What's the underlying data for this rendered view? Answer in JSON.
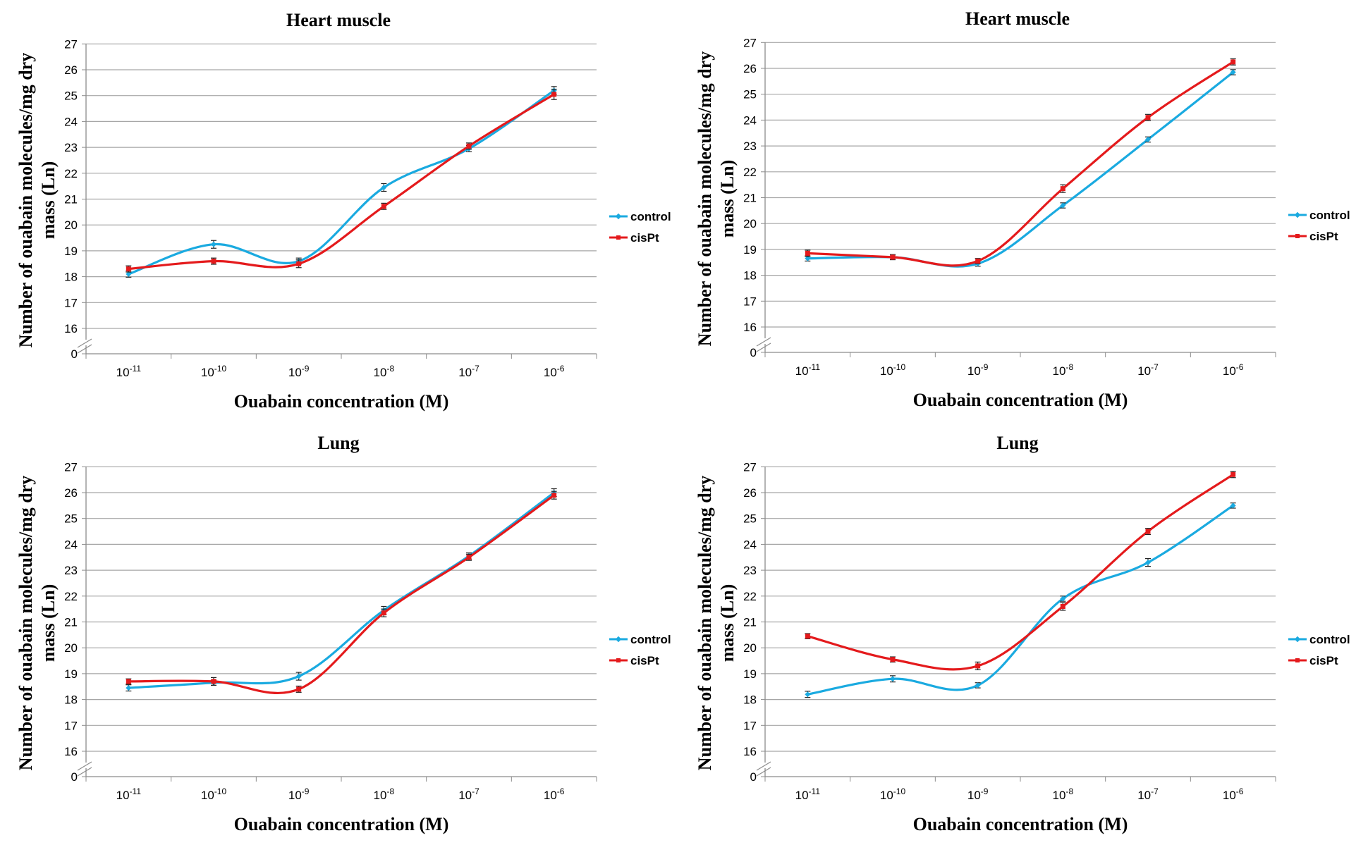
{
  "colors": {
    "control": "#1aaae0",
    "cisPt": "#e41a1c",
    "grid": "#a6a6a6",
    "axis": "#8c8c8c"
  },
  "chart_data": [
    {
      "type": "line",
      "title": "Heart muscle",
      "xlabel": "Ouabain concentration (M)",
      "ylabel_lines": [
        "Number of ouabain molecules/mg dry",
        "mass  (Ln)"
      ],
      "categories": [
        {
          "base": "10",
          "exp": "-11"
        },
        {
          "base": "10",
          "exp": "-10"
        },
        {
          "base": "10",
          "exp": "-9"
        },
        {
          "base": "10",
          "exp": "-8"
        },
        {
          "base": "10",
          "exp": "-7"
        },
        {
          "base": "10",
          "exp": "-6"
        }
      ],
      "y_ticks": [
        "0",
        "16",
        "17",
        "18",
        "19",
        "20",
        "21",
        "22",
        "23",
        "24",
        "25",
        "26",
        "27"
      ],
      "ylim": [
        15,
        27
      ],
      "y_axis_break": true,
      "legend": {
        "position": "right",
        "entries": [
          "control",
          "cisPt"
        ]
      },
      "series": [
        {
          "name": "control",
          "values": [
            18.1,
            19.25,
            18.6,
            21.45,
            22.95,
            25.2
          ],
          "errors": [
            0.12,
            0.15,
            0.12,
            0.15,
            0.12,
            0.15
          ]
        },
        {
          "name": "cisPt",
          "values": [
            18.3,
            18.6,
            18.5,
            20.72,
            23.05,
            25.05
          ],
          "errors": [
            0.12,
            0.12,
            0.15,
            0.12,
            0.12,
            0.2
          ]
        }
      ]
    },
    {
      "type": "line",
      "title": "Heart muscle",
      "xlabel": "Ouabain concentration (M)",
      "ylabel_lines": [
        "Number of ouabain molecules/mg dry",
        "mass (Ln)"
      ],
      "categories": [
        {
          "base": "10",
          "exp": "-11"
        },
        {
          "base": "10",
          "exp": "-10"
        },
        {
          "base": "10",
          "exp": "-9"
        },
        {
          "base": "10",
          "exp": "-8"
        },
        {
          "base": "10",
          "exp": "-7"
        },
        {
          "base": "10",
          "exp": "-6"
        }
      ],
      "y_ticks": [
        "0",
        "16",
        "17",
        "18",
        "19",
        "20",
        "21",
        "22",
        "23",
        "24",
        "25",
        "26",
        "27"
      ],
      "ylim": [
        15,
        27
      ],
      "y_axis_break": true,
      "legend": {
        "position": "right",
        "entries": [
          "control",
          "cisPt"
        ]
      },
      "series": [
        {
          "name": "control",
          "values": [
            18.65,
            18.7,
            18.45,
            20.7,
            23.25,
            25.85
          ],
          "errors": [
            0.1,
            0.08,
            0.1,
            0.1,
            0.1,
            0.1
          ]
        },
        {
          "name": "cisPt",
          "values": [
            18.85,
            18.7,
            18.55,
            21.35,
            24.1,
            26.25
          ],
          "errors": [
            0.12,
            0.1,
            0.1,
            0.15,
            0.12,
            0.12
          ]
        }
      ]
    },
    {
      "type": "line",
      "title": "Lung",
      "xlabel": "Ouabain concentration (M)",
      "ylabel_lines": [
        "Number of ouabain molecules/mg dry",
        "mass (Ln)"
      ],
      "categories": [
        {
          "base": "10",
          "exp": "-11"
        },
        {
          "base": "10",
          "exp": "-10"
        },
        {
          "base": "10",
          "exp": "-9"
        },
        {
          "base": "10",
          "exp": "-8"
        },
        {
          "base": "10",
          "exp": "-7"
        },
        {
          "base": "10",
          "exp": "-6"
        }
      ],
      "y_ticks": [
        "0",
        "16",
        "17",
        "18",
        "19",
        "20",
        "21",
        "22",
        "23",
        "24",
        "25",
        "26",
        "27"
      ],
      "ylim": [
        15,
        27
      ],
      "y_axis_break": true,
      "legend": {
        "position": "right",
        "entries": [
          "control",
          "cisPt"
        ]
      },
      "series": [
        {
          "name": "control",
          "values": [
            18.45,
            18.65,
            18.9,
            21.45,
            23.55,
            26.0
          ],
          "errors": [
            0.12,
            0.1,
            0.15,
            0.15,
            0.12,
            0.15
          ]
        },
        {
          "name": "cisPt",
          "values": [
            18.7,
            18.7,
            18.4,
            21.35,
            23.5,
            25.9
          ],
          "errors": [
            0.1,
            0.15,
            0.12,
            0.15,
            0.12,
            0.15
          ]
        }
      ]
    },
    {
      "type": "line",
      "title": "Lung",
      "xlabel": "Ouabain concentration (M)",
      "ylabel_lines": [
        "Number of ouabain molecules/mg dry",
        "mass (Ln)"
      ],
      "categories": [
        {
          "base": "10",
          "exp": "-11"
        },
        {
          "base": "10",
          "exp": "-10"
        },
        {
          "base": "10",
          "exp": "-9"
        },
        {
          "base": "10",
          "exp": "-8"
        },
        {
          "base": "10",
          "exp": "-7"
        },
        {
          "base": "10",
          "exp": "-6"
        }
      ],
      "y_ticks": [
        "0",
        "16",
        "17",
        "18",
        "19",
        "20",
        "21",
        "22",
        "23",
        "24",
        "25",
        "26",
        "27"
      ],
      "ylim": [
        15,
        27
      ],
      "y_axis_break": true,
      "legend": {
        "position": "right",
        "entries": [
          "control",
          "cisPt"
        ]
      },
      "series": [
        {
          "name": "control",
          "values": [
            18.2,
            18.8,
            18.55,
            21.9,
            23.3,
            25.5
          ],
          "errors": [
            0.12,
            0.12,
            0.1,
            0.1,
            0.15,
            0.1
          ]
        },
        {
          "name": "cisPt",
          "values": [
            20.45,
            19.55,
            19.3,
            21.6,
            24.5,
            26.7
          ],
          "errors": [
            0.1,
            0.1,
            0.15,
            0.15,
            0.12,
            0.12
          ]
        }
      ]
    }
  ]
}
